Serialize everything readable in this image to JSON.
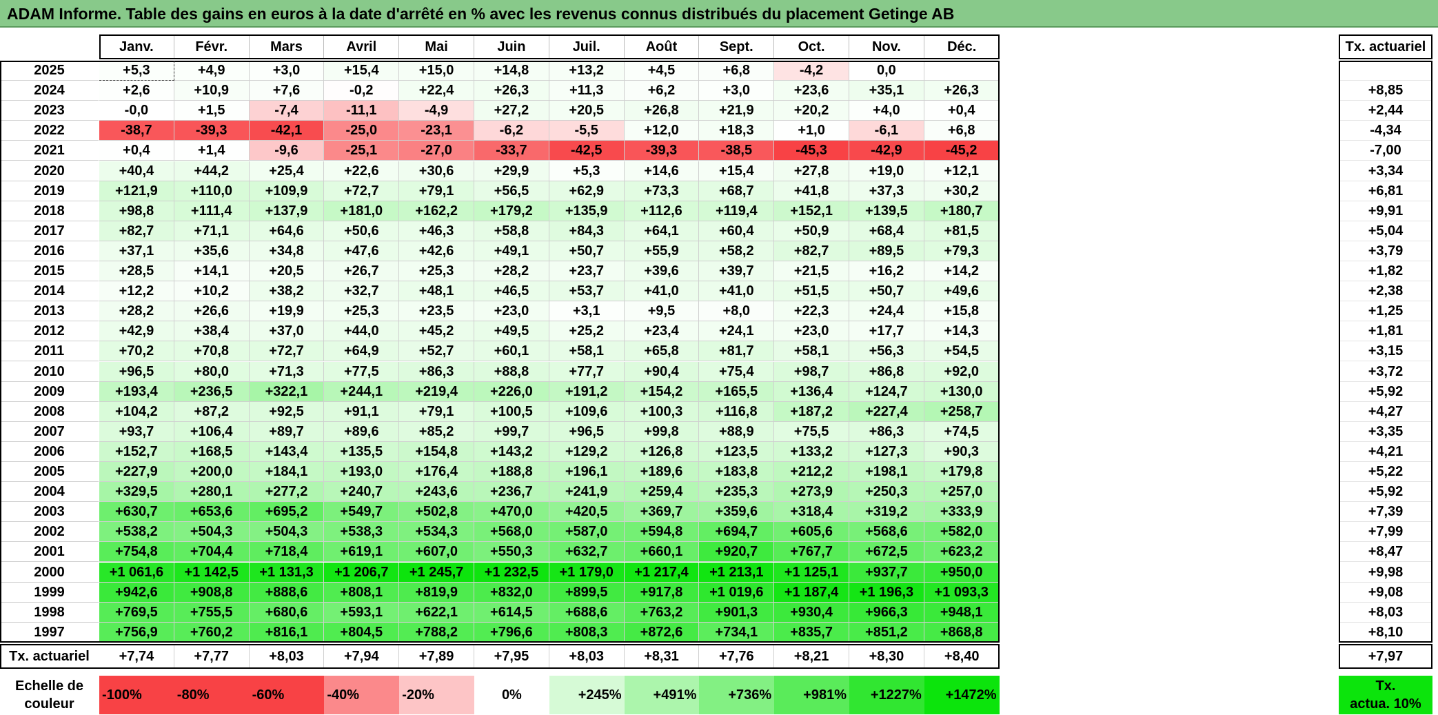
{
  "title": "ADAM Informe. Table des gains en euros à la date d'arrêté en % avec les revenus connus distribués du placement Getinge AB",
  "months": [
    "Janv.",
    "Févr.",
    "Mars",
    "Avril",
    "Mai",
    "Juin",
    "Juil.",
    "Août",
    "Sept.",
    "Oct.",
    "Nov.",
    "Déc."
  ],
  "rate_header": "Tx. actuariel",
  "rows": [
    {
      "year": "2025",
      "values": [
        "+5,3",
        "+4,9",
        "+3,0",
        "+15,4",
        "+15,0",
        "+14,8",
        "+13,2",
        "+4,5",
        "+6,8",
        "-4,2",
        "0,0",
        ""
      ],
      "rate": ""
    },
    {
      "year": "2024",
      "values": [
        "+2,6",
        "+10,9",
        "+7,6",
        "-0,2",
        "+22,4",
        "+26,3",
        "+11,3",
        "+6,2",
        "+3,0",
        "+23,6",
        "+35,1",
        "+26,3"
      ],
      "rate": "+8,85"
    },
    {
      "year": "2023",
      "values": [
        "-0,0",
        "+1,5",
        "-7,4",
        "-11,1",
        "-4,9",
        "+27,2",
        "+20,5",
        "+26,8",
        "+21,9",
        "+20,2",
        "+4,0",
        "+0,4"
      ],
      "rate": "+2,44"
    },
    {
      "year": "2022",
      "values": [
        "-38,7",
        "-39,3",
        "-42,1",
        "-25,0",
        "-23,1",
        "-6,2",
        "-5,5",
        "+12,0",
        "+18,3",
        "+1,0",
        "-6,1",
        "+6,8"
      ],
      "rate": "-4,34"
    },
    {
      "year": "2021",
      "values": [
        "+0,4",
        "+1,4",
        "-9,6",
        "-25,1",
        "-27,0",
        "-33,7",
        "-42,5",
        "-39,3",
        "-38,5",
        "-45,3",
        "-42,9",
        "-45,2"
      ],
      "rate": "-7,00"
    },
    {
      "year": "2020",
      "values": [
        "+40,4",
        "+44,2",
        "+25,4",
        "+22,6",
        "+30,6",
        "+29,9",
        "+5,3",
        "+14,6",
        "+15,4",
        "+27,8",
        "+19,0",
        "+12,1"
      ],
      "rate": "+3,34"
    },
    {
      "year": "2019",
      "values": [
        "+121,9",
        "+110,0",
        "+109,9",
        "+72,7",
        "+79,1",
        "+56,5",
        "+62,9",
        "+73,3",
        "+68,7",
        "+41,8",
        "+37,3",
        "+30,2"
      ],
      "rate": "+6,81"
    },
    {
      "year": "2018",
      "values": [
        "+98,8",
        "+111,4",
        "+137,9",
        "+181,0",
        "+162,2",
        "+179,2",
        "+135,9",
        "+112,6",
        "+119,4",
        "+152,1",
        "+139,5",
        "+180,7"
      ],
      "rate": "+9,91"
    },
    {
      "year": "2017",
      "values": [
        "+82,7",
        "+71,1",
        "+64,6",
        "+50,6",
        "+46,3",
        "+58,8",
        "+84,3",
        "+64,1",
        "+60,4",
        "+50,9",
        "+68,4",
        "+81,5"
      ],
      "rate": "+5,04"
    },
    {
      "year": "2016",
      "values": [
        "+37,1",
        "+35,6",
        "+34,8",
        "+47,6",
        "+42,6",
        "+49,1",
        "+50,7",
        "+55,9",
        "+58,2",
        "+82,7",
        "+89,5",
        "+79,3"
      ],
      "rate": "+3,79"
    },
    {
      "year": "2015",
      "values": [
        "+28,5",
        "+14,1",
        "+20,5",
        "+26,7",
        "+25,3",
        "+28,2",
        "+23,7",
        "+39,6",
        "+39,7",
        "+21,5",
        "+16,2",
        "+14,2"
      ],
      "rate": "+1,82"
    },
    {
      "year": "2014",
      "values": [
        "+12,2",
        "+10,2",
        "+38,2",
        "+32,7",
        "+48,1",
        "+46,5",
        "+53,7",
        "+41,0",
        "+41,0",
        "+51,5",
        "+50,7",
        "+49,6"
      ],
      "rate": "+2,38"
    },
    {
      "year": "2013",
      "values": [
        "+28,2",
        "+26,6",
        "+19,9",
        "+25,3",
        "+23,5",
        "+23,0",
        "+3,1",
        "+9,5",
        "+8,0",
        "+22,3",
        "+24,4",
        "+15,8"
      ],
      "rate": "+1,25"
    },
    {
      "year": "2012",
      "values": [
        "+42,9",
        "+38,4",
        "+37,0",
        "+44,0",
        "+45,2",
        "+49,5",
        "+25,2",
        "+23,4",
        "+24,1",
        "+23,0",
        "+17,7",
        "+14,3"
      ],
      "rate": "+1,81"
    },
    {
      "year": "2011",
      "values": [
        "+70,2",
        "+70,8",
        "+72,7",
        "+64,9",
        "+52,7",
        "+60,1",
        "+58,1",
        "+65,8",
        "+81,7",
        "+58,1",
        "+56,3",
        "+54,5"
      ],
      "rate": "+3,15"
    },
    {
      "year": "2010",
      "values": [
        "+96,5",
        "+80,0",
        "+71,3",
        "+77,5",
        "+86,3",
        "+88,8",
        "+77,7",
        "+90,4",
        "+75,4",
        "+98,7",
        "+86,8",
        "+92,0"
      ],
      "rate": "+3,72"
    },
    {
      "year": "2009",
      "values": [
        "+193,4",
        "+236,5",
        "+322,1",
        "+244,1",
        "+219,4",
        "+226,0",
        "+191,2",
        "+154,2",
        "+165,5",
        "+136,4",
        "+124,7",
        "+130,0"
      ],
      "rate": "+5,92"
    },
    {
      "year": "2008",
      "values": [
        "+104,2",
        "+87,2",
        "+92,5",
        "+91,1",
        "+79,1",
        "+100,5",
        "+109,6",
        "+100,3",
        "+116,8",
        "+187,2",
        "+227,4",
        "+258,7"
      ],
      "rate": "+4,27"
    },
    {
      "year": "2007",
      "values": [
        "+93,7",
        "+106,4",
        "+89,7",
        "+89,6",
        "+85,2",
        "+99,7",
        "+96,5",
        "+99,8",
        "+88,9",
        "+75,5",
        "+86,3",
        "+74,5"
      ],
      "rate": "+3,35"
    },
    {
      "year": "2006",
      "values": [
        "+152,7",
        "+168,5",
        "+143,4",
        "+135,5",
        "+154,8",
        "+143,2",
        "+129,2",
        "+126,8",
        "+123,5",
        "+133,2",
        "+127,3",
        "+90,3"
      ],
      "rate": "+4,21"
    },
    {
      "year": "2005",
      "values": [
        "+227,9",
        "+200,0",
        "+184,1",
        "+193,0",
        "+176,4",
        "+188,8",
        "+196,1",
        "+189,6",
        "+183,8",
        "+212,2",
        "+198,1",
        "+179,8"
      ],
      "rate": "+5,22"
    },
    {
      "year": "2004",
      "values": [
        "+329,5",
        "+280,1",
        "+277,2",
        "+240,7",
        "+243,6",
        "+236,7",
        "+241,9",
        "+259,4",
        "+235,3",
        "+273,9",
        "+250,3",
        "+257,0"
      ],
      "rate": "+5,92"
    },
    {
      "year": "2003",
      "values": [
        "+630,7",
        "+653,6",
        "+695,2",
        "+549,7",
        "+502,8",
        "+470,0",
        "+420,5",
        "+369,7",
        "+359,6",
        "+318,4",
        "+319,2",
        "+333,9"
      ],
      "rate": "+7,39"
    },
    {
      "year": "2002",
      "values": [
        "+538,2",
        "+504,3",
        "+504,3",
        "+538,3",
        "+534,3",
        "+568,0",
        "+587,0",
        "+594,8",
        "+694,7",
        "+605,6",
        "+568,6",
        "+582,0"
      ],
      "rate": "+7,99"
    },
    {
      "year": "2001",
      "values": [
        "+754,8",
        "+704,4",
        "+718,4",
        "+619,1",
        "+607,0",
        "+550,3",
        "+632,7",
        "+660,1",
        "+920,7",
        "+767,7",
        "+672,5",
        "+623,2"
      ],
      "rate": "+8,47"
    },
    {
      "year": "2000",
      "values": [
        "+1 061,6",
        "+1 142,5",
        "+1 131,3",
        "+1 206,7",
        "+1 245,7",
        "+1 232,5",
        "+1 179,0",
        "+1 217,4",
        "+1 213,1",
        "+1 125,1",
        "+937,7",
        "+950,0"
      ],
      "rate": "+9,98"
    },
    {
      "year": "1999",
      "values": [
        "+942,6",
        "+908,8",
        "+888,6",
        "+808,1",
        "+819,9",
        "+832,0",
        "+899,5",
        "+917,8",
        "+1 019,6",
        "+1 187,4",
        "+1 196,3",
        "+1 093,3"
      ],
      "rate": "+9,08"
    },
    {
      "year": "1998",
      "values": [
        "+769,5",
        "+755,5",
        "+680,6",
        "+593,1",
        "+622,1",
        "+614,5",
        "+688,6",
        "+763,2",
        "+901,3",
        "+930,4",
        "+966,3",
        "+948,1"
      ],
      "rate": "+8,03"
    },
    {
      "year": "1997",
      "values": [
        "+756,9",
        "+760,2",
        "+816,1",
        "+804,5",
        "+788,2",
        "+796,6",
        "+808,3",
        "+872,6",
        "+734,1",
        "+835,7",
        "+851,2",
        "+868,8"
      ],
      "rate": "+8,10"
    }
  ],
  "summary": {
    "label": "Tx. actuariel",
    "values": [
      "+7,74",
      "+7,77",
      "+8,03",
      "+7,94",
      "+7,89",
      "+7,95",
      "+8,03",
      "+8,31",
      "+7,76",
      "+8,21",
      "+8,30",
      "+8,40"
    ],
    "rate": "+7,97"
  },
  "scale": {
    "label_line1": "Echelle de",
    "label_line2": "couleur",
    "steps": [
      {
        "text": "-100%",
        "color": "#f84245",
        "align": "left"
      },
      {
        "text": "-80%",
        "color": "#f84245",
        "align": "left"
      },
      {
        "text": "-60%",
        "color": "#f84245",
        "align": "left"
      },
      {
        "text": "-40%",
        "color": "#fb898b",
        "align": "left"
      },
      {
        "text": "-20%",
        "color": "#fdc5c6",
        "align": "left"
      },
      {
        "text": "0%",
        "color": "#ffffff",
        "align": "center"
      },
      {
        "text": "+245%",
        "color": "#d6fad6",
        "align": "right"
      },
      {
        "text": "+491%",
        "color": "#acf5ac",
        "align": "right"
      },
      {
        "text": "+736%",
        "color": "#83f083",
        "align": "right"
      },
      {
        "text": "+981%",
        "color": "#5aeb5a",
        "align": "right"
      },
      {
        "text": "+1227%",
        "color": "#31e631",
        "align": "right"
      },
      {
        "text": "+1472%",
        "color": "#0ce40c",
        "align": "right"
      }
    ],
    "rate_line1": "Tx.",
    "rate_line2": "actua. 10%",
    "rate_color": "#0ce40c"
  },
  "colors": {
    "title_bg": "#88c98a",
    "negative_max": "#f84245",
    "positive_max": "#0ce40c"
  }
}
